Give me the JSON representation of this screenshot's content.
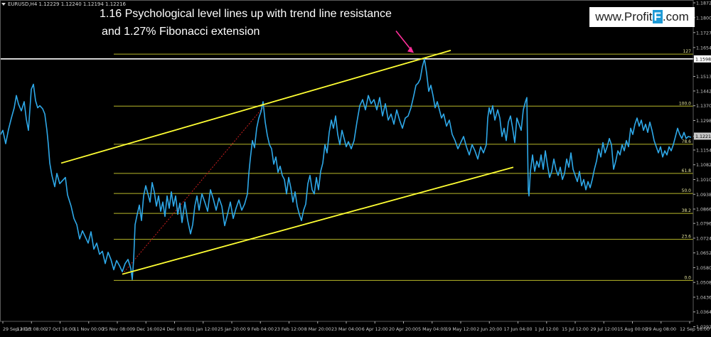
{
  "symbol_info": "EURUSD,H4  1.12229 1.12240 1.12194 1.12216",
  "annotation": {
    "line1": "1.16 Psychological level lines up with trend line resistance",
    "line2": "and 1.27% Fibonacci extension"
  },
  "watermark": {
    "prefix": "www.Profit",
    "highlight": "F",
    "suffix": ".com"
  },
  "colors": {
    "background": "#000000",
    "price_line": "#2ea8e8",
    "trend_line": "#ffff33",
    "fib_line": "#b8b82a",
    "white_level": "#ffffff",
    "arrow": "#ff2f9b",
    "dotted": "#cc1f1f",
    "axis": "#b0b0b0"
  },
  "chart_data": {
    "type": "line",
    "symbol": "EURUSD",
    "timeframe": "H4",
    "ylim": [
      1.0318,
      1.1872
    ],
    "price_axis_ticks": [
      "1.18720",
      "1.18000",
      "1.17270",
      "1.16540",
      "1.15986",
      "1.15130",
      "1.14420",
      "1.13700",
      "1.12980",
      "1.12216",
      "1.11540",
      "1.10820",
      "1.10100",
      "1.09380",
      "1.08660",
      "1.07960",
      "1.07240",
      "1.06520",
      "1.05800",
      "1.05080",
      "1.04360",
      "1.03640",
      "1.02920"
    ],
    "time_axis_ticks": [
      "29 Sep 2015",
      "13 Oct 08:00",
      "27 Oct 16:00",
      "11 Nov 00:00",
      "25 Nov 08:00",
      "9 Dec 16:00",
      "24 Dec 00:00",
      "11 Jan 12:00",
      "25 Jan 20:00",
      "9 Feb 04:00",
      "23 Feb 12:00",
      "8 Mar 20:00",
      "23 Mar 04:00",
      "6 Apr 12:00",
      "20 Apr 20:00",
      "5 May 04:00",
      "19 May 12:00",
      "2 Jun 20:00",
      "17 Jun 04:00",
      "1 Jul 12:00",
      "15 Jul 12:00",
      "29 Jul 12:00",
      "15 Aug 00:00",
      "29 Aug 08:00",
      "12 Sep 16:00"
    ],
    "current_price": "1.12216",
    "marked_level": "1.15986",
    "fib_levels": [
      {
        "label": "127",
        "price": 1.1622
      },
      {
        "label": "100.0",
        "price": 1.1368
      },
      {
        "label": "78.6",
        "price": 1.1182
      },
      {
        "label": "61.8",
        "price": 1.104
      },
      {
        "label": "50.0",
        "price": 1.0942
      },
      {
        "label": "38.2",
        "price": 1.0845
      },
      {
        "label": "23.6",
        "price": 1.0718
      },
      {
        "label": "0.0",
        "price": 1.0518
      }
    ],
    "price_path": [
      [
        0,
        1.1225
      ],
      [
        4,
        1.125
      ],
      [
        8,
        1.1185
      ],
      [
        12,
        1.1255
      ],
      [
        16,
        1.131
      ],
      [
        20,
        1.136
      ],
      [
        23,
        1.142
      ],
      [
        26,
        1.1378
      ],
      [
        30,
        1.1345
      ],
      [
        34,
        1.139
      ],
      [
        37,
        1.1305
      ],
      [
        40,
        1.125
      ],
      [
        42,
        1.135
      ],
      [
        44,
        1.145
      ],
      [
        47,
        1.1475
      ],
      [
        50,
        1.1395
      ],
      [
        53,
        1.136
      ],
      [
        56,
        1.137
      ],
      [
        60,
        1.1355
      ],
      [
        63,
        1.133
      ],
      [
        66,
        1.125
      ],
      [
        68,
        1.118
      ],
      [
        70,
        1.109
      ],
      [
        73,
        1.103
      ],
      [
        77,
        1.0975
      ],
      [
        80,
        1.104
      ],
      [
        84,
        1.099
      ],
      [
        88,
        1.1005
      ],
      [
        92,
        1.102
      ],
      [
        95,
        1.0935
      ],
      [
        100,
        1.088
      ],
      [
        104,
        1.082
      ],
      [
        108,
        1.079
      ],
      [
        112,
        1.072
      ],
      [
        116,
        1.076
      ],
      [
        120,
        1.073
      ],
      [
        124,
        1.07
      ],
      [
        128,
        1.0755
      ],
      [
        132,
        1.067
      ],
      [
        136,
        1.07
      ],
      [
        140,
        1.0645
      ],
      [
        144,
        1.066
      ],
      [
        148,
        1.06
      ],
      [
        152,
        1.0655
      ],
      [
        156,
        1.062
      ],
      [
        160,
        1.057
      ],
      [
        164,
        1.0615
      ],
      [
        168,
        1.059
      ],
      [
        172,
        1.056
      ],
      [
        176,
        1.06
      ],
      [
        180,
        1.062
      ],
      [
        184,
        1.0575
      ],
      [
        186,
        1.0522
      ],
      [
        188,
        1.062
      ],
      [
        190,
        1.079
      ],
      [
        193,
        1.084
      ],
      [
        196,
        1.0885
      ],
      [
        199,
        1.081
      ],
      [
        202,
        1.093
      ],
      [
        205,
        1.098
      ],
      [
        208,
        1.094
      ],
      [
        211,
        1.09
      ],
      [
        214,
        1.0995
      ],
      [
        217,
        1.095
      ],
      [
        220,
        1.088
      ],
      [
        223,
        1.093
      ],
      [
        226,
        1.0855
      ],
      [
        229,
        1.09
      ],
      [
        232,
        1.083
      ],
      [
        235,
        1.093
      ],
      [
        238,
        1.087
      ],
      [
        241,
        1.095
      ],
      [
        244,
        1.088
      ],
      [
        247,
        1.093
      ],
      [
        250,
        1.084
      ],
      [
        253,
        1.0895
      ],
      [
        256,
        1.08
      ],
      [
        260,
        1.09
      ],
      [
        264,
        1.081
      ],
      [
        268,
        1.0745
      ],
      [
        271,
        1.079
      ],
      [
        274,
        1.088
      ],
      [
        277,
        1.093
      ],
      [
        280,
        1.086
      ],
      [
        284,
        1.094
      ],
      [
        288,
        1.09
      ],
      [
        292,
        1.0855
      ],
      [
        296,
        1.096
      ],
      [
        300,
        1.0915
      ],
      [
        304,
        1.086
      ],
      [
        308,
        1.092
      ],
      [
        312,
        1.088
      ],
      [
        316,
        1.0785
      ],
      [
        320,
        1.084
      ],
      [
        324,
        1.09
      ],
      [
        328,
        1.082
      ],
      [
        332,
        1.087
      ],
      [
        336,
        1.091
      ],
      [
        340,
        1.086
      ],
      [
        344,
        1.089
      ],
      [
        348,
        1.094
      ],
      [
        350,
        1.104
      ],
      [
        352,
        1.111
      ],
      [
        355,
        1.12
      ],
      [
        358,
        1.1165
      ],
      [
        361,
        1.126
      ],
      [
        364,
        1.131
      ],
      [
        367,
        1.134
      ],
      [
        370,
        1.139
      ],
      [
        373,
        1.129
      ],
      [
        376,
        1.1225
      ],
      [
        379,
        1.118
      ],
      [
        382,
        1.116
      ],
      [
        385,
        1.1085
      ],
      [
        388,
        1.112
      ],
      [
        391,
        1.1045
      ],
      [
        394,
        1.1075
      ],
      [
        397,
        1.103
      ],
      [
        400,
        1.101
      ],
      [
        403,
        1.094
      ],
      [
        406,
        1.102
      ],
      [
        409,
        1.097
      ],
      [
        412,
        1.09
      ],
      [
        415,
        1.095
      ],
      [
        418,
        1.088
      ],
      [
        421,
        1.084
      ],
      [
        424,
        1.081
      ],
      [
        427,
        1.086
      ],
      [
        430,
        1.089
      ],
      [
        433,
        1.099
      ],
      [
        436,
        1.103
      ],
      [
        439,
        1.096
      ],
      [
        442,
        1.094
      ],
      [
        445,
        1.102
      ],
      [
        448,
        1.096
      ],
      [
        451,
        1.105
      ],
      [
        454,
        1.109
      ],
      [
        457,
        1.118
      ],
      [
        460,
        1.114
      ],
      [
        463,
        1.124
      ],
      [
        466,
        1.13
      ],
      [
        469,
        1.126
      ],
      [
        472,
        1.132
      ],
      [
        475,
        1.123
      ],
      [
        478,
        1.118
      ],
      [
        481,
        1.125
      ],
      [
        484,
        1.121
      ],
      [
        487,
        1.117
      ],
      [
        490,
        1.1195
      ],
      [
        494,
        1.116
      ],
      [
        498,
        1.12
      ],
      [
        502,
        1.129
      ],
      [
        506,
        1.137
      ],
      [
        510,
        1.14
      ],
      [
        514,
        1.135
      ],
      [
        518,
        1.142
      ],
      [
        522,
        1.138
      ],
      [
        526,
        1.14
      ],
      [
        530,
        1.135
      ],
      [
        534,
        1.141
      ],
      [
        538,
        1.132
      ],
      [
        542,
        1.138
      ],
      [
        546,
        1.13
      ],
      [
        550,
        1.133
      ],
      [
        554,
        1.128
      ],
      [
        558,
        1.135
      ],
      [
        562,
        1.13
      ],
      [
        566,
        1.126
      ],
      [
        570,
        1.131
      ],
      [
        574,
        1.132
      ],
      [
        578,
        1.136
      ],
      [
        582,
        1.142
      ],
      [
        585,
        1.147
      ],
      [
        588,
        1.148
      ],
      [
        591,
        1.15
      ],
      [
        594,
        1.156
      ],
      [
        597,
        1.1598
      ],
      [
        600,
        1.153
      ],
      [
        603,
        1.144
      ],
      [
        606,
        1.147
      ],
      [
        609,
        1.142
      ],
      [
        612,
        1.136
      ],
      [
        615,
        1.139
      ],
      [
        618,
        1.135
      ],
      [
        621,
        1.131
      ],
      [
        624,
        1.133
      ],
      [
        628,
        1.127
      ],
      [
        632,
        1.13
      ],
      [
        636,
        1.123
      ],
      [
        640,
        1.12
      ],
      [
        644,
        1.116
      ],
      [
        648,
        1.119
      ],
      [
        652,
        1.122
      ],
      [
        656,
        1.117
      ],
      [
        660,
        1.113
      ],
      [
        664,
        1.118
      ],
      [
        668,
        1.115
      ],
      [
        672,
        1.111
      ],
      [
        676,
        1.117
      ],
      [
        680,
        1.114
      ],
      [
        684,
        1.118
      ],
      [
        686,
        1.131
      ],
      [
        688,
        1.136
      ],
      [
        690,
        1.133
      ],
      [
        693,
        1.137
      ],
      [
        696,
        1.13
      ],
      [
        700,
        1.135
      ],
      [
        703,
        1.131
      ],
      [
        706,
        1.122
      ],
      [
        709,
        1.126
      ],
      [
        712,
        1.12
      ],
      [
        715,
        1.129
      ],
      [
        718,
        1.132
      ],
      [
        721,
        1.126
      ],
      [
        724,
        1.119
      ],
      [
        727,
        1.131
      ],
      [
        730,
        1.128
      ],
      [
        733,
        1.125
      ],
      [
        736,
        1.135
      ],
      [
        739,
        1.139
      ],
      [
        741,
        1.141
      ],
      [
        742,
        1.118
      ],
      [
        743,
        1.096
      ],
      [
        744,
        1.093
      ],
      [
        746,
        1.105
      ],
      [
        749,
        1.113
      ],
      [
        752,
        1.105
      ],
      [
        755,
        1.11
      ],
      [
        758,
        1.107
      ],
      [
        761,
        1.113
      ],
      [
        764,
        1.106
      ],
      [
        767,
        1.115
      ],
      [
        770,
        1.108
      ],
      [
        773,
        1.102
      ],
      [
        776,
        1.105
      ],
      [
        779,
        1.111
      ],
      [
        782,
        1.106
      ],
      [
        785,
        1.103
      ],
      [
        788,
        1.107
      ],
      [
        791,
        1.101
      ],
      [
        794,
        1.104
      ],
      [
        797,
        1.111
      ],
      [
        800,
        1.107
      ],
      [
        803,
        1.114
      ],
      [
        806,
        1.106
      ],
      [
        809,
        1.103
      ],
      [
        812,
        1.1
      ],
      [
        815,
        1.105
      ],
      [
        818,
        1.098
      ],
      [
        821,
        1.101
      ],
      [
        824,
        1.096
      ],
      [
        827,
        1.1
      ],
      [
        830,
        1.097
      ],
      [
        833,
        1.101
      ],
      [
        836,
        1.106
      ],
      [
        839,
        1.11
      ],
      [
        842,
        1.116
      ],
      [
        845,
        1.112
      ],
      [
        848,
        1.119
      ],
      [
        851,
        1.114
      ],
      [
        854,
        1.117
      ],
      [
        857,
        1.121
      ],
      [
        860,
        1.118
      ],
      [
        863,
        1.106
      ],
      [
        866,
        1.11
      ],
      [
        869,
        1.115
      ],
      [
        872,
        1.113
      ],
      [
        875,
        1.118
      ],
      [
        878,
        1.115
      ],
      [
        881,
        1.12
      ],
      [
        884,
        1.117
      ],
      [
        887,
        1.126
      ],
      [
        890,
        1.123
      ],
      [
        893,
        1.128
      ],
      [
        896,
        1.131
      ],
      [
        899,
        1.127
      ],
      [
        902,
        1.13
      ],
      [
        905,
        1.125
      ],
      [
        908,
        1.128
      ],
      [
        911,
        1.124
      ],
      [
        914,
        1.129
      ],
      [
        917,
        1.125
      ],
      [
        920,
        1.12
      ],
      [
        923,
        1.117
      ],
      [
        926,
        1.114
      ],
      [
        929,
        1.117
      ],
      [
        932,
        1.112
      ],
      [
        935,
        1.115
      ],
      [
        938,
        1.113
      ],
      [
        941,
        1.117
      ],
      [
        944,
        1.115
      ],
      [
        947,
        1.118
      ],
      [
        950,
        1.122
      ],
      [
        953,
        1.126
      ],
      [
        956,
        1.123
      ],
      [
        959,
        1.121
      ],
      [
        962,
        1.124
      ],
      [
        965,
        1.121
      ],
      [
        968,
        1.122
      ],
      [
        972,
        1.1216
      ]
    ]
  }
}
